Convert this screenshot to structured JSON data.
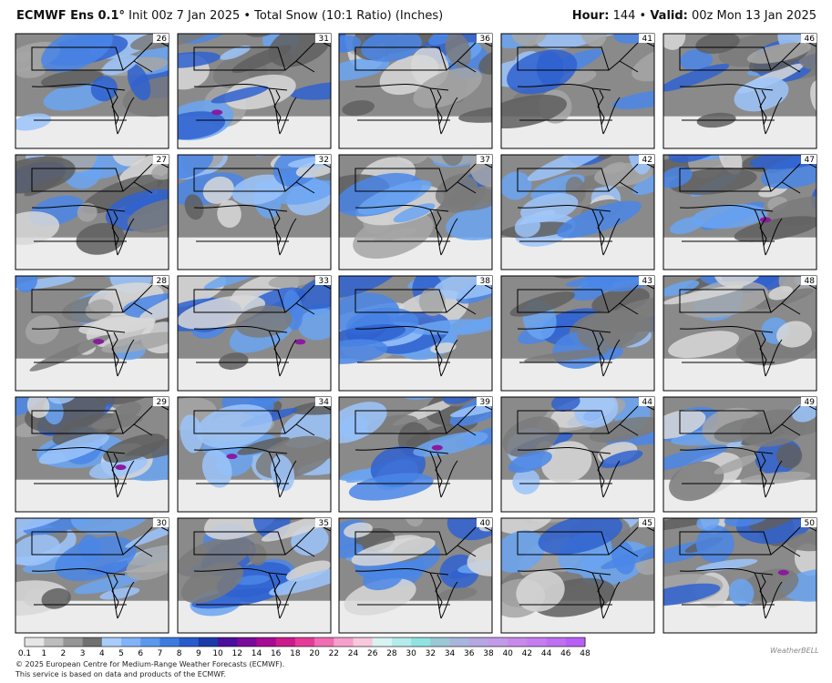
{
  "header": {
    "model": "ECMWF Ens 0.1°",
    "subtitle": "Init 00z 7 Jan 2025 • Total Snow (10:1 Ratio) (Inches)",
    "hour_label": "Hour:",
    "hour": "144 •",
    "valid_label": "Valid:",
    "valid": "00z Mon 13 Jan 2025"
  },
  "panels": [
    "26",
    "27",
    "28",
    "29",
    "30",
    "31",
    "32",
    "33",
    "34",
    "35",
    "36",
    "37",
    "38",
    "39",
    "40",
    "41",
    "42",
    "43",
    "44",
    "45",
    "46",
    "47",
    "48",
    "49",
    "50"
  ],
  "colorbar": {
    "labels": [
      "0.1",
      "1",
      "2",
      "3",
      "4",
      "5",
      "6",
      "7",
      "8",
      "9",
      "10",
      "12",
      "14",
      "16",
      "18",
      "20",
      "22",
      "24",
      "26",
      "28",
      "30",
      "32",
      "34",
      "36",
      "38",
      "40",
      "42",
      "44",
      "46",
      "48"
    ],
    "colors": [
      "#e6e6e6",
      "#bdbdbd",
      "#969696",
      "#707070",
      "#a9cdfb",
      "#82b3f7",
      "#5c98ee",
      "#3d7be0",
      "#2a5bcc",
      "#1a3aa8",
      "#4b0f9e",
      "#7a0a9a",
      "#a70a94",
      "#cc1a8a",
      "#e63a9a",
      "#f06cb4",
      "#f5a0cc",
      "#f8c8dd",
      "#d9f2f2",
      "#b4ecec",
      "#8fe3e3",
      "#9cc7d6",
      "#a8b6dc",
      "#b6a6e2",
      "#c39ae8",
      "#c78aea",
      "#c47df0",
      "#bf6ff2",
      "#b860f5"
    ]
  },
  "footer": {
    "line1": "© 2025 European Centre for Medium-Range Weather Forecasts (ECMWF).",
    "line2": "This service is based on data and products of the ECMWF.",
    "logo": "WeatherBELL"
  }
}
